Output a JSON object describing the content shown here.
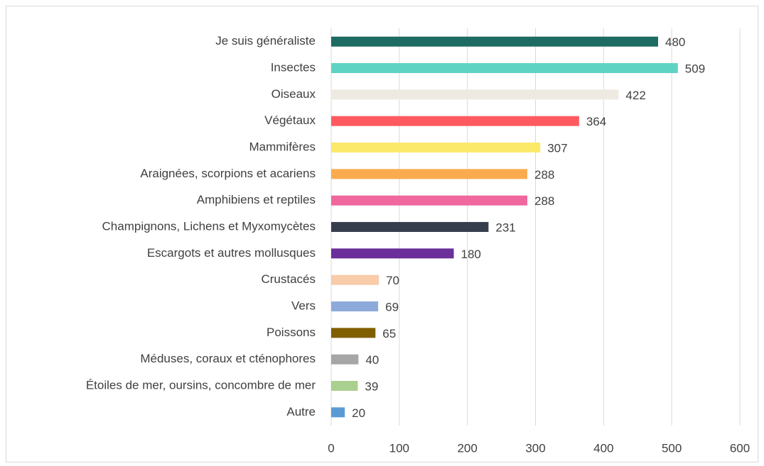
{
  "chart_data": {
    "type": "bar",
    "orientation": "horizontal",
    "categories": [
      "Je suis généraliste",
      "Insectes",
      "Oiseaux",
      "Végétaux",
      "Mammifères",
      "Araignées, scorpions et acariens",
      "Amphibiens et reptiles",
      "Champignons, Lichens et Myxomycètes",
      "Escargots et autres mollusques",
      "Crustacés",
      "Vers",
      "Poissons",
      "Méduses, coraux et cténophores",
      "Étoiles de mer, oursins, concombre de mer",
      "Autre"
    ],
    "values": [
      480,
      509,
      422,
      364,
      307,
      288,
      288,
      231,
      180,
      70,
      69,
      65,
      40,
      39,
      20
    ],
    "colors": [
      "#1d6b63",
      "#5fd3c3",
      "#eeeae2",
      "#ff5a5f",
      "#fbe96a",
      "#fbab4f",
      "#f0679d",
      "#363e4d",
      "#6a2f9a",
      "#f8cba9",
      "#8eaadb",
      "#7f5f00",
      "#a6a6a6",
      "#a9d08e",
      "#5b9bd5"
    ],
    "xlim": [
      0,
      600
    ],
    "xticks": [
      0,
      100,
      200,
      300,
      400,
      500,
      600
    ],
    "grid": true
  }
}
